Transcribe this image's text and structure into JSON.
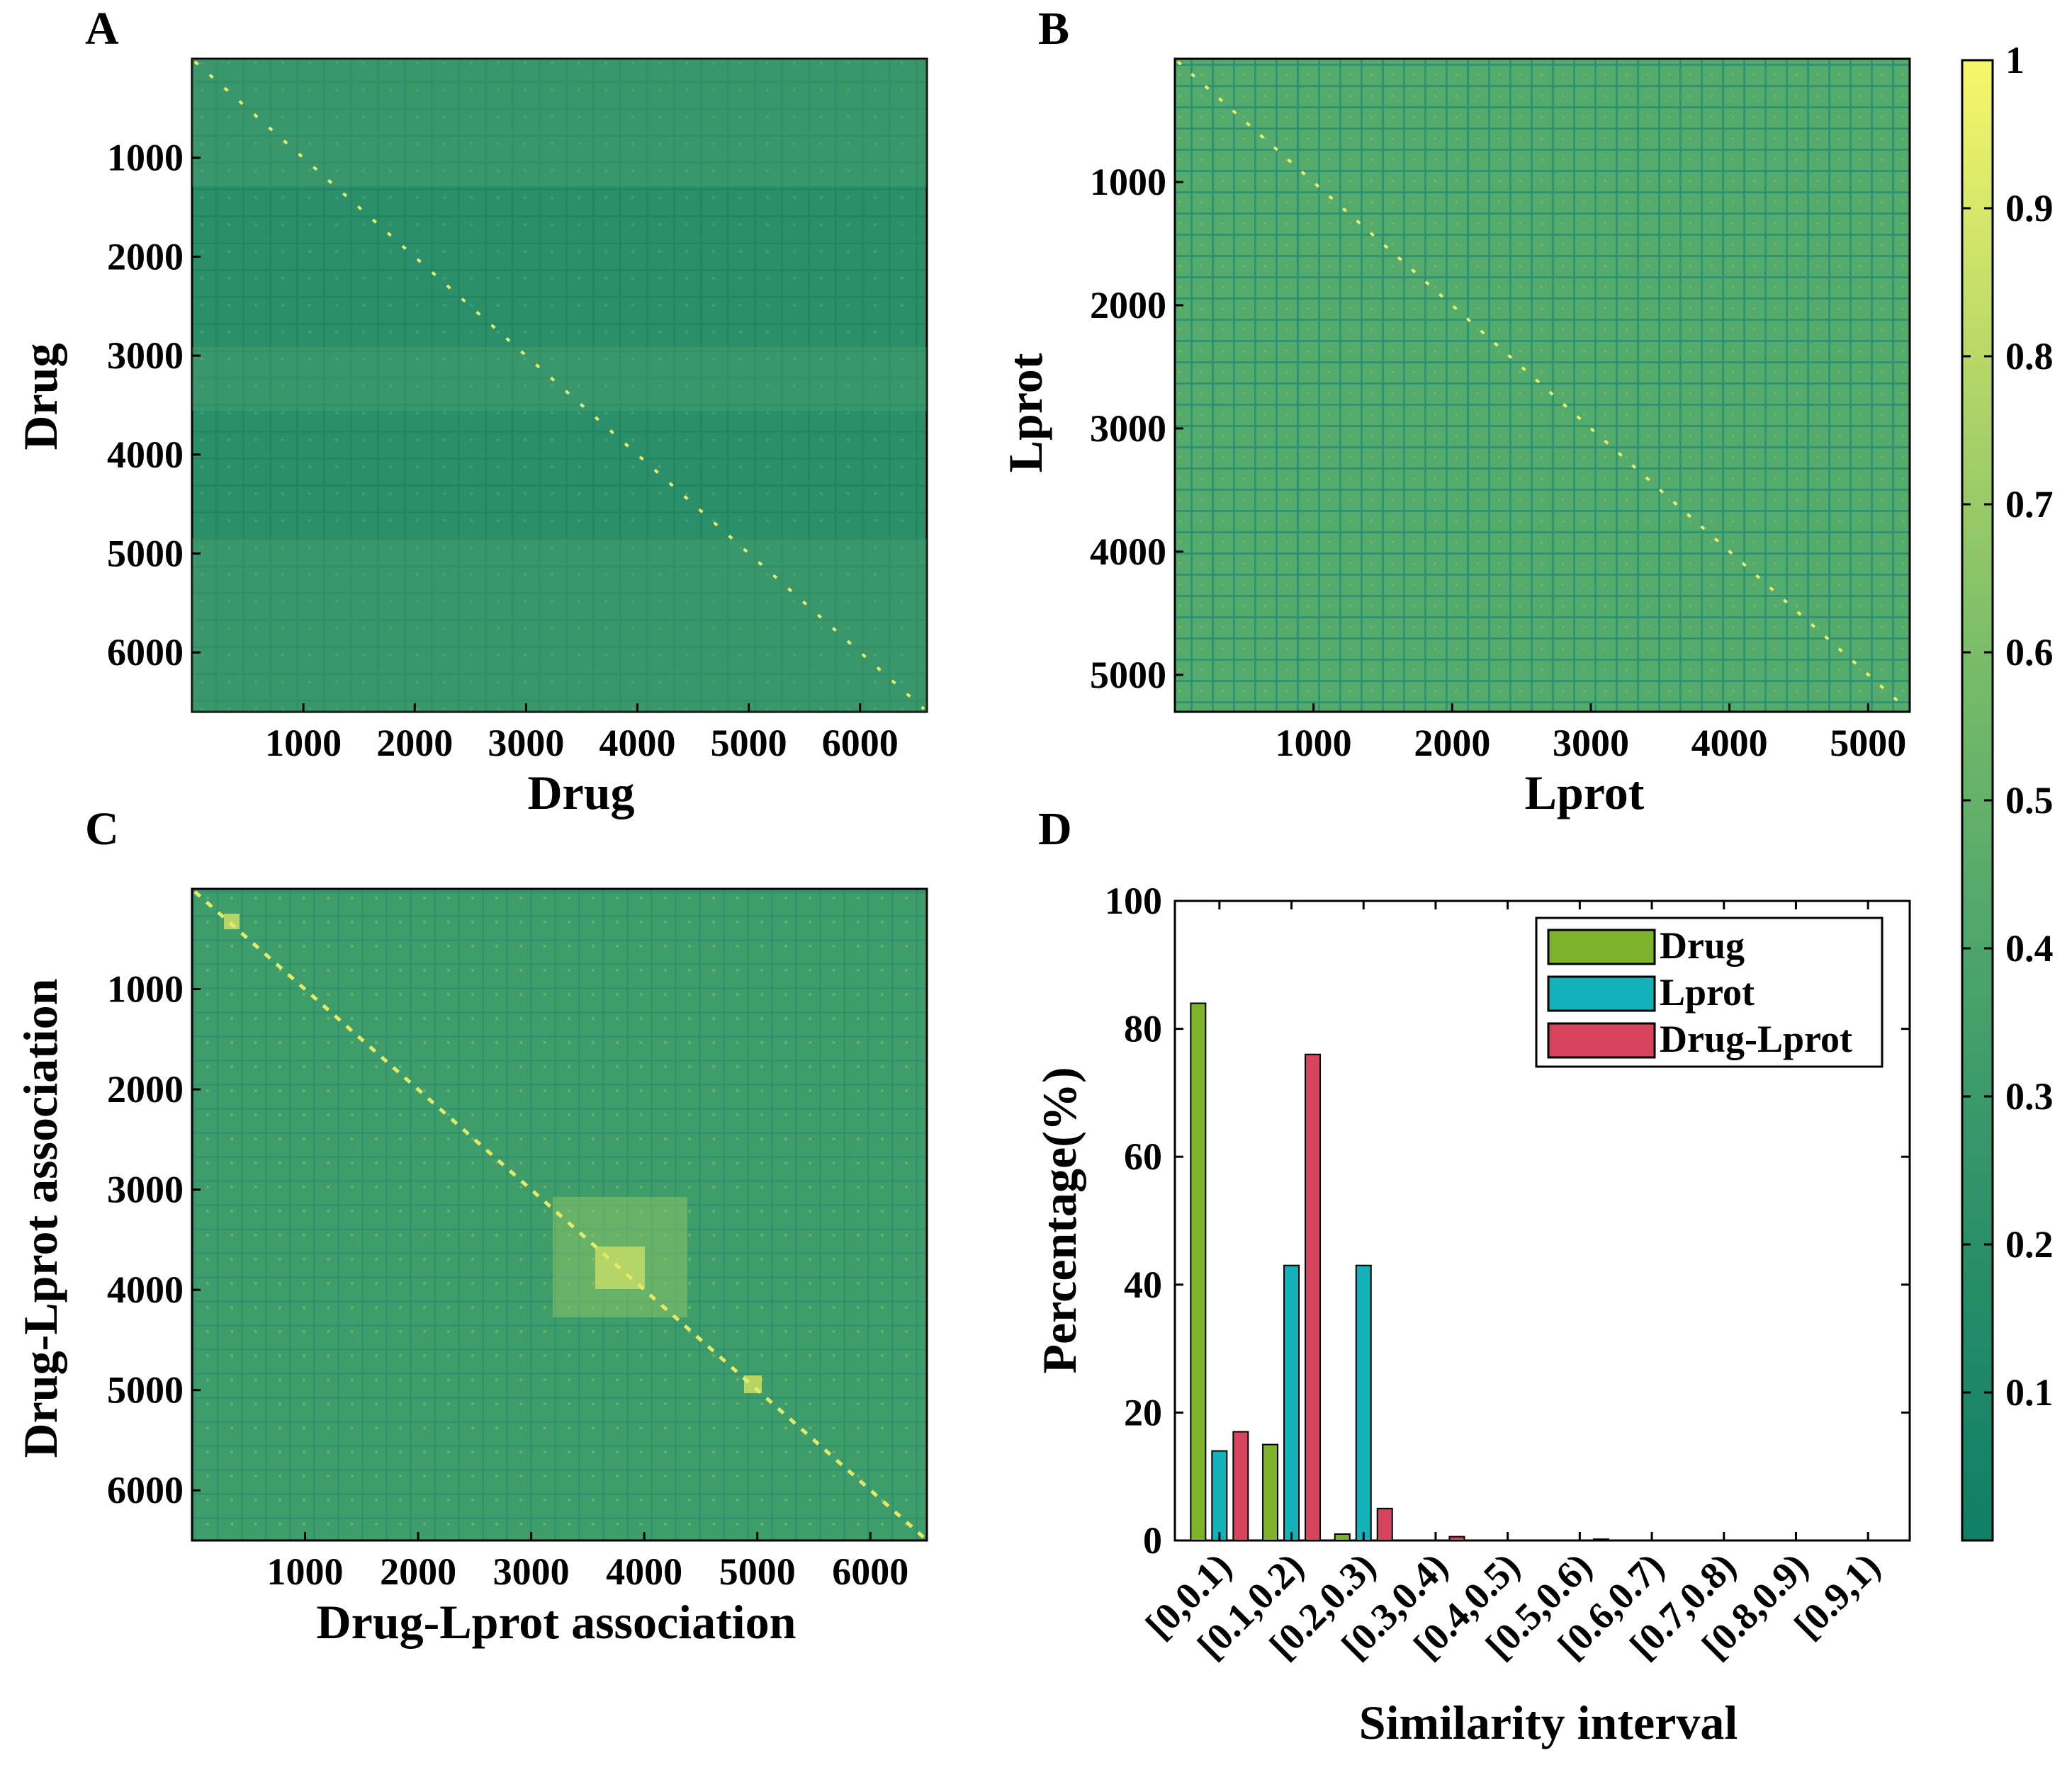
{
  "chart_data": [
    {
      "panel": "A",
      "type": "heatmap",
      "xlabel": "Drug",
      "ylabel": "Drug",
      "xlim": [
        0,
        6600
      ],
      "ylim": [
        0,
        6600
      ],
      "xticks": [
        "1000",
        "2000",
        "3000",
        "4000",
        "5000",
        "6000"
      ],
      "yticks": [
        "1000",
        "2000",
        "3000",
        "4000",
        "5000",
        "6000"
      ]
    },
    {
      "panel": "B",
      "type": "heatmap",
      "xlabel": "Lprot",
      "ylabel": "Lprot",
      "xlim": [
        0,
        5300
      ],
      "ylim": [
        0,
        5300
      ],
      "xticks": [
        "1000",
        "2000",
        "3000",
        "4000",
        "5000"
      ],
      "yticks": [
        "1000",
        "2000",
        "3000",
        "4000",
        "5000"
      ]
    },
    {
      "panel": "C",
      "type": "heatmap",
      "xlabel": "Drug-Lprot association",
      "ylabel": "Drug-Lprot association",
      "xlim": [
        0,
        6500
      ],
      "ylim": [
        0,
        6500
      ],
      "xticks": [
        "1000",
        "2000",
        "3000",
        "4000",
        "5000",
        "6000"
      ],
      "yticks": [
        "1000",
        "2000",
        "3000",
        "4000",
        "5000",
        "6000"
      ]
    },
    {
      "panel": "D",
      "type": "bar",
      "xlabel": "Similarity interval",
      "ylabel": "Percentage(%)",
      "ylim": [
        0,
        100
      ],
      "yticks": [
        "0",
        "20",
        "40",
        "60",
        "80",
        "100"
      ],
      "categories": [
        "[0,0.1)",
        "[0.1,0.2)",
        "[0.2,0.3)",
        "[0.3,0.4)",
        "[0.4,0.5)",
        "[0.5,0.6)",
        "[0.6,0.7)",
        "[0.7,0.8)",
        "[0.8,0.9)",
        "[0.9,1)"
      ],
      "series": [
        {
          "name": "Drug",
          "color": "#7fb32a",
          "values": [
            84,
            15,
            1,
            0,
            0,
            0,
            0,
            0,
            0,
            0
          ]
        },
        {
          "name": "Lprot",
          "color": "#14b3bb",
          "values": [
            14,
            43,
            43,
            0,
            0,
            0,
            0,
            0,
            0,
            0
          ]
        },
        {
          "name": "Drug-Lprot",
          "color": "#d8435e",
          "values": [
            17,
            76,
            5,
            0.6,
            0,
            0.2,
            0,
            0,
            0,
            0
          ]
        }
      ]
    }
  ],
  "colorbar": {
    "ticks": [
      "1",
      "0.9",
      "0.8",
      "0.7",
      "0.6",
      "0.5",
      "0.4",
      "0.3",
      "0.2",
      "0.1"
    ],
    "low_color": "#0f7f66",
    "high_color": "#f7f76a"
  },
  "panels": {
    "A": "A",
    "B": "B",
    "C": "C",
    "D": "D"
  }
}
